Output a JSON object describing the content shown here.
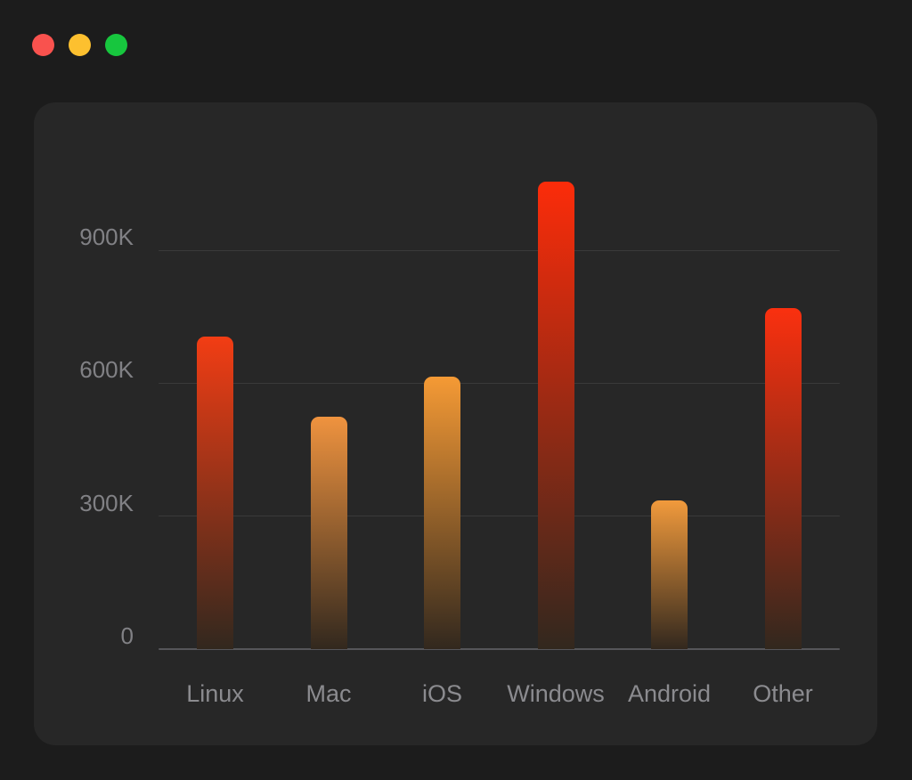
{
  "window": {
    "traffic_lights": [
      {
        "name": "close-button",
        "color": "#f9524e"
      },
      {
        "name": "minimize-button",
        "color": "#fdc02f"
      },
      {
        "name": "zoom-button",
        "color": "#17c63e"
      }
    ]
  },
  "theme": {
    "background": "#1c1c1c",
    "card_background": "#272727",
    "gridline_color": "#3a3a3a",
    "axis_color": "#56565a",
    "y_tick_label_color": "#818185",
    "category_label_color": "#8b8b8f",
    "bar_gradient_end": "#32281e"
  },
  "chart_data": {
    "type": "bar",
    "title": "",
    "xlabel": "",
    "ylabel": "",
    "categories": [
      "Linux",
      "Mac",
      "iOS",
      "Windows",
      "Android",
      "Other"
    ],
    "values": [
      705000,
      525000,
      615000,
      1055000,
      335000,
      770000
    ],
    "bar_top_colors": [
      "#f23d14",
      "#ef933f",
      "#f59a35",
      "#fc2c0a",
      "#f19a3c",
      "#fa300f"
    ],
    "yticks": [
      {
        "value": 0,
        "label": "0"
      },
      {
        "value": 300000,
        "label": "300K"
      },
      {
        "value": 600000,
        "label": "600K"
      },
      {
        "value": 900000,
        "label": "900K"
      }
    ],
    "ylim": [
      0,
      1103000
    ],
    "grid": "horizontal-only",
    "legend_position": "none"
  }
}
